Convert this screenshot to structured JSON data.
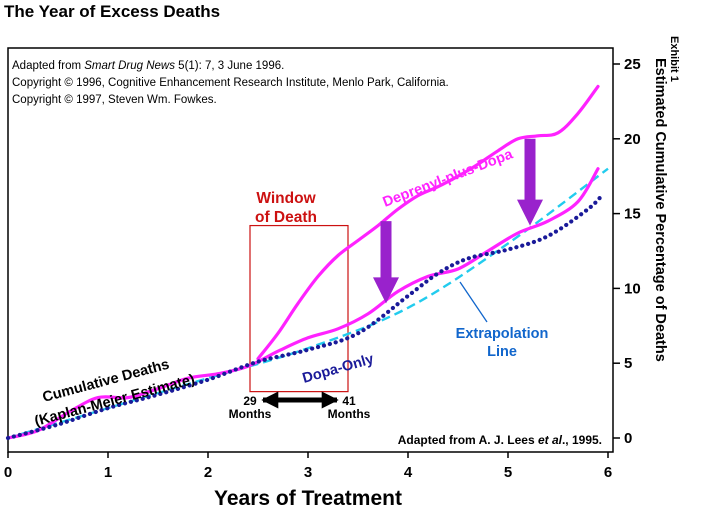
{
  "header": {
    "title": "The Year of Excess Deaths",
    "exhibit": "Exhibit 1"
  },
  "credits": {
    "line1_prefix": "Adapted from ",
    "line1_italic": "Smart Drug News",
    "line1_suffix": " 5(1): 7, 3 June 1996.",
    "line2": "Copyright © 1996, Cognitive Enhancement Research Institute, Menlo Park, California.",
    "line3": "Copyright © 1997, Steven Wm. Fowkes."
  },
  "colors": {
    "deprenyl": "#ff22ff",
    "dopa": "#1a1a99",
    "extrapolation": "#22ccee",
    "window": "#cc1111",
    "arrow": "#9922cc",
    "extrap_label": "#1166cc"
  },
  "chart_data": {
    "type": "line",
    "title": "The Year of Excess Deaths",
    "xlabel": "Years of Treatment",
    "ylabel": "Estimated Cumulative Percentage of Deaths",
    "xlim": [
      0,
      6
    ],
    "ylim": [
      0,
      25
    ],
    "x_ticks": [
      "0",
      "1",
      "2",
      "3",
      "4",
      "5",
      "6"
    ],
    "y_ticks": [
      "0",
      "5",
      "10",
      "15",
      "20",
      "25"
    ],
    "series": [
      {
        "name": "Deprenyl-plus-Dopa (lower branch)",
        "color_key": "deprenyl",
        "style": "solid",
        "x": [
          0,
          0.3,
          0.6,
          0.9,
          1.2,
          1.5,
          1.8,
          2.1,
          2.4,
          2.7,
          3.0,
          3.3,
          3.6,
          3.9,
          4.2,
          4.5,
          4.8,
          5.1,
          5.4,
          5.7,
          5.9
        ],
        "y": [
          0,
          0.5,
          1.7,
          2.7,
          2.7,
          3.3,
          4.0,
          4.3,
          4.8,
          5.8,
          6.7,
          7.3,
          8.3,
          9.8,
          10.8,
          11.3,
          12.5,
          13.7,
          14.5,
          15.8,
          18
        ]
      },
      {
        "name": "Deprenyl-plus-Dopa (upper branch)",
        "color_key": "deprenyl",
        "style": "solid",
        "x": [
          2.5,
          2.7,
          2.9,
          3.1,
          3.3,
          3.5,
          3.7,
          3.9,
          4.1,
          4.3,
          4.5,
          4.7,
          4.9,
          5.1,
          5.3,
          5.5,
          5.7,
          5.9
        ],
        "y": [
          5.3,
          7.0,
          9.0,
          10.8,
          12.2,
          13.2,
          14.2,
          15.3,
          16.2,
          16.8,
          17.5,
          18.3,
          19.2,
          20.0,
          20.2,
          20.4,
          21.7,
          23.5
        ]
      },
      {
        "name": "Dopa-Only",
        "color_key": "dopa",
        "style": "dotted",
        "x": [
          0,
          0.5,
          1.0,
          1.5,
          2.0,
          2.5,
          3.0,
          3.5,
          4.0,
          4.3,
          4.6,
          5.0,
          5.4,
          5.8,
          5.95
        ],
        "y": [
          0,
          0.9,
          2.0,
          2.9,
          3.9,
          5.1,
          5.9,
          7.0,
          9.5,
          11.0,
          12.0,
          12.6,
          13.5,
          15.3,
          16.3
        ]
      },
      {
        "name": "Extrapolation Line",
        "color_key": "extrapolation",
        "style": "dashed",
        "x": [
          0,
          1,
          2,
          3,
          4,
          5,
          6
        ],
        "y": [
          0,
          2.0,
          4.0,
          6.0,
          8.7,
          13.0,
          18.0
        ]
      }
    ],
    "annotations": {
      "window_label_1": "Window",
      "window_label_2": "of Death",
      "window_x_range": [
        2.42,
        3.4
      ],
      "window_y_range": [
        3.1,
        14.2
      ],
      "months_start_value": "29",
      "months_end_value": "41",
      "months_unit": "Months",
      "deprenyl_label": "Deprenyl-plus-Dopa",
      "dopa_label": "Dopa-Only",
      "cumulative_1": "Cumulative Deaths",
      "cumulative_2": "(Kaplan-Meier Estimate)",
      "extrap_1": "Extrapolation",
      "extrap_2": "Line",
      "source_prefix": "Adapted from A. J. Lees ",
      "source_italic": "et al",
      "source_suffix": "., 1995.",
      "gap_arrows": [
        {
          "x": 3.78,
          "from": 14.5,
          "to": 9.0
        },
        {
          "x": 5.22,
          "from": 20.0,
          "to": 14.2
        }
      ]
    }
  }
}
